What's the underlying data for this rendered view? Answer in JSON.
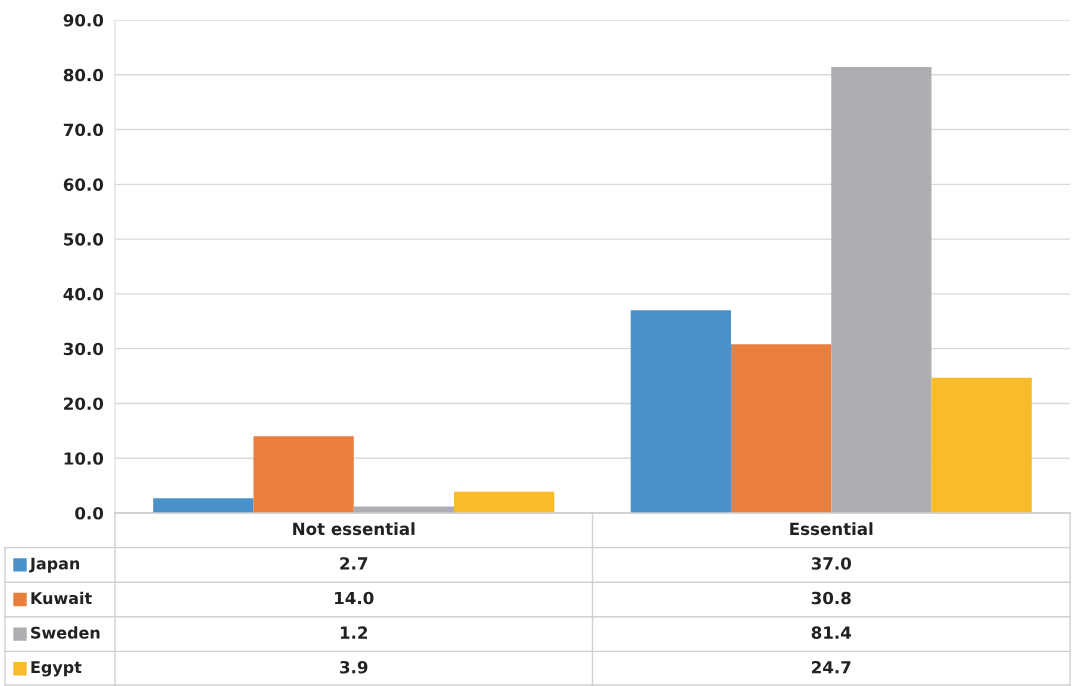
{
  "chart_data": {
    "type": "bar",
    "categories": [
      "Not essential",
      "Essential"
    ],
    "series": [
      {
        "name": "Japan",
        "color": "#4a90c9",
        "values": [
          2.7,
          37.0
        ],
        "value_labels": [
          "2.7",
          "37.0"
        ]
      },
      {
        "name": "Kuwait",
        "color": "#ea7e3c",
        "values": [
          14.0,
          30.8
        ],
        "value_labels": [
          "14.0",
          "30.8"
        ]
      },
      {
        "name": "Sweden",
        "color": "#adaeb2",
        "values": [
          1.2,
          81.4
        ],
        "value_labels": [
          "1.2",
          "81.4"
        ]
      },
      {
        "name": "Egypt",
        "color": "#f8bb2a",
        "values": [
          3.9,
          24.7
        ],
        "value_labels": [
          "3.9",
          "24.7"
        ]
      }
    ],
    "ylim": [
      0,
      90
    ],
    "yticks": [
      {
        "value": 0,
        "label": "0.0"
      },
      {
        "value": 10,
        "label": "10.0"
      },
      {
        "value": 20,
        "label": "20.0"
      },
      {
        "value": 30,
        "label": "30.0"
      },
      {
        "value": 40,
        "label": "40.0"
      },
      {
        "value": 50,
        "label": "50.0"
      },
      {
        "value": 60,
        "label": "60.0"
      },
      {
        "value": 70,
        "label": "70.0"
      },
      {
        "value": 80,
        "label": "80.0"
      },
      {
        "value": 90,
        "label": "90.0"
      }
    ],
    "grid": "y",
    "legend": "bottom"
  }
}
